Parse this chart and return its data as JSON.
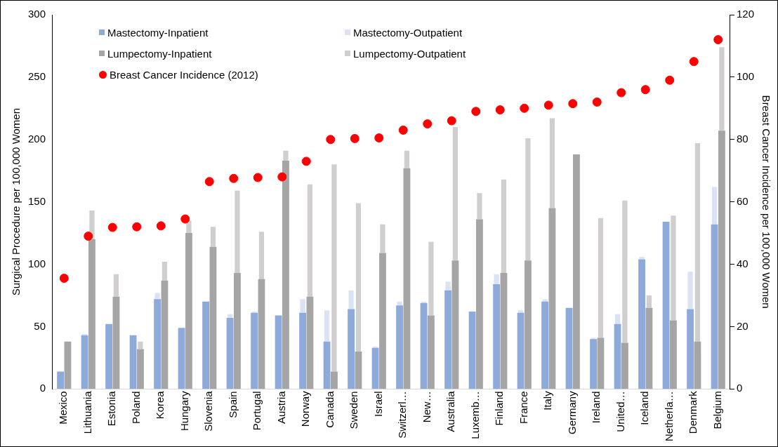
{
  "chart_data": {
    "type": "bar",
    "ylabel": "Surgical Procedure per 100,000 Women",
    "y2label": "Breast Cancer Incidence per 100,000 Women",
    "categories": [
      "Mexico",
      "Lithuania",
      "Estonia",
      "Poland",
      "Korea",
      "Hungary",
      "Slovenia",
      "Spain",
      "Portugal",
      "Austria",
      "Norway",
      "Canada",
      "Sweden",
      "Israel",
      "Switzerl…",
      "New…",
      "Australia",
      "Luxemb…",
      "Finland",
      "France",
      "Italy",
      "Germany",
      "Ireland",
      "United…",
      "Iceland",
      "Netherla…",
      "Denmark",
      "Belgium"
    ],
    "legend": "top left",
    "grid": false,
    "marker": "circle",
    "ylim": [
      0,
      300
    ],
    "yticks": [
      0,
      50,
      100,
      150,
      200,
      250,
      300
    ],
    "y2lim": [
      0,
      120
    ],
    "y2ticks": [
      0,
      20,
      40,
      60,
      80,
      100,
      120
    ],
    "series": [
      {
        "name": "Mastectomy-Inpatient",
        "color": "#8eaadb",
        "values": [
          14,
          43,
          52,
          43,
          72,
          49,
          70,
          57,
          61,
          59,
          61,
          38,
          64,
          33,
          67,
          69,
          79,
          62,
          84,
          61,
          70,
          65,
          40,
          52,
          104,
          134,
          64,
          132
        ]
      },
      {
        "name": "Mastectomy-Outpatient",
        "color": "#dae3f3",
        "base": [
          null,
          43,
          null,
          null,
          72,
          null,
          null,
          57,
          61,
          null,
          61,
          38,
          64,
          33,
          67,
          69,
          79,
          null,
          84,
          61,
          70,
          null,
          40,
          52,
          104,
          null,
          64,
          132
        ],
        "values": [
          null,
          1,
          null,
          null,
          5,
          null,
          null,
          3,
          1,
          null,
          11,
          25,
          15,
          1,
          3,
          1,
          7,
          null,
          8,
          2,
          2,
          null,
          1,
          8,
          2,
          null,
          30,
          30
        ]
      },
      {
        "name": "Lumpectomy-Inpatient",
        "color": "#a5a5a5",
        "values": [
          38,
          120,
          74,
          32,
          87,
          125,
          114,
          93,
          88,
          183,
          74,
          14,
          30,
          109,
          177,
          59,
          103,
          136,
          93,
          103,
          145,
          188,
          41,
          37,
          65,
          55,
          38,
          207
        ]
      },
      {
        "name": "Lumpectomy-Outpatient",
        "color": "#d0cece",
        "base": [
          null,
          120,
          74,
          32,
          87,
          125,
          114,
          93,
          88,
          183,
          74,
          14,
          30,
          109,
          177,
          59,
          103,
          136,
          93,
          103,
          145,
          null,
          41,
          37,
          65,
          55,
          38,
          207
        ],
        "values": [
          null,
          23,
          18,
          6,
          15,
          10,
          16,
          66,
          38,
          8,
          90,
          166,
          119,
          23,
          14,
          59,
          107,
          21,
          75,
          98,
          72,
          null,
          96,
          114,
          10,
          84,
          159,
          67
        ]
      },
      {
        "name": "Breast Cancer Incidence (2012)",
        "type": "scatter",
        "axis": "y2",
        "color": "#ff0000",
        "values": [
          35.5,
          49,
          51.8,
          52,
          52.3,
          54.5,
          66.5,
          67.5,
          67.8,
          68,
          73,
          80,
          80.3,
          80.5,
          83,
          85,
          86,
          89,
          89.5,
          90,
          91,
          91.5,
          92,
          95,
          96,
          99,
          105,
          112
        ]
      }
    ]
  }
}
